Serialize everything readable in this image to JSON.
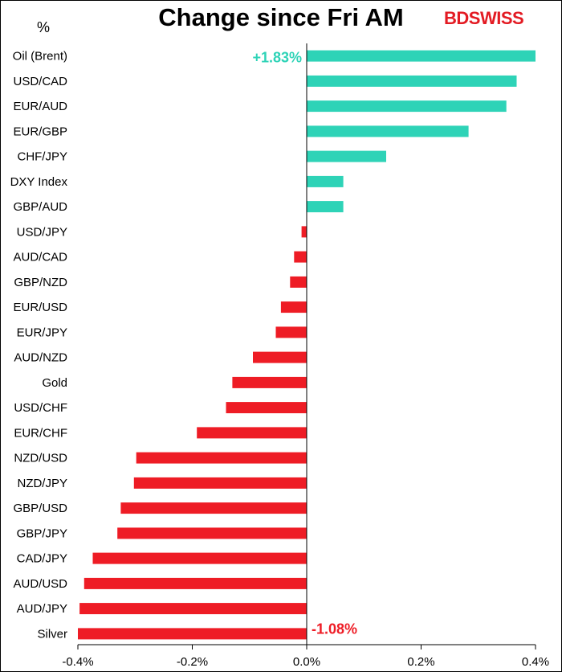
{
  "header": {
    "title": "Change since Fri AM",
    "unit_label": "%",
    "logo_part1": "BD",
    "logo_part2": "SWISS"
  },
  "colors": {
    "positive": "#2ed3b7",
    "negative": "#ee1c25",
    "positive_label": "#2ed3b7",
    "negative_label": "#ee1c25"
  },
  "chart_data": {
    "type": "bar",
    "orientation": "horizontal",
    "title": "Change since Fri AM",
    "ylabel": "%",
    "xlim": [
      -0.4,
      0.4
    ],
    "xticks": [
      "-0.4%",
      "-0.2%",
      "0.0%",
      "0.2%",
      "0.4%"
    ],
    "xtick_values": [
      -0.4,
      -0.2,
      0.0,
      0.2,
      0.4
    ],
    "grid": false,
    "categories": [
      "Oil (Brent)",
      "USD/CAD",
      "EUR/AUD",
      "EUR/GBP",
      "CHF/JPY",
      "DXY Index",
      "GBP/AUD",
      "USD/JPY",
      "AUD/CAD",
      "GBP/NZD",
      "EUR/USD",
      "EUR/JPY",
      "AUD/NZD",
      "Gold",
      "USD/CHF",
      "EUR/CHF",
      "NZD/USD",
      "NZD/JPY",
      "GBP/USD",
      "GBP/JPY",
      "CAD/JPY",
      "AUD/USD",
      "AUD/JPY",
      "Silver"
    ],
    "values": [
      0.4,
      0.367,
      0.349,
      0.283,
      0.139,
      0.064,
      0.064,
      -0.009,
      -0.022,
      -0.029,
      -0.045,
      -0.054,
      -0.094,
      -0.13,
      -0.141,
      -0.192,
      -0.298,
      -0.302,
      -0.325,
      -0.331,
      -0.374,
      -0.389,
      -0.397,
      -0.4
    ],
    "annotations": [
      {
        "category": "Oil (Brent)",
        "text": "+1.83%"
      },
      {
        "category": "Silver",
        "text": "-1.08%"
      }
    ]
  }
}
